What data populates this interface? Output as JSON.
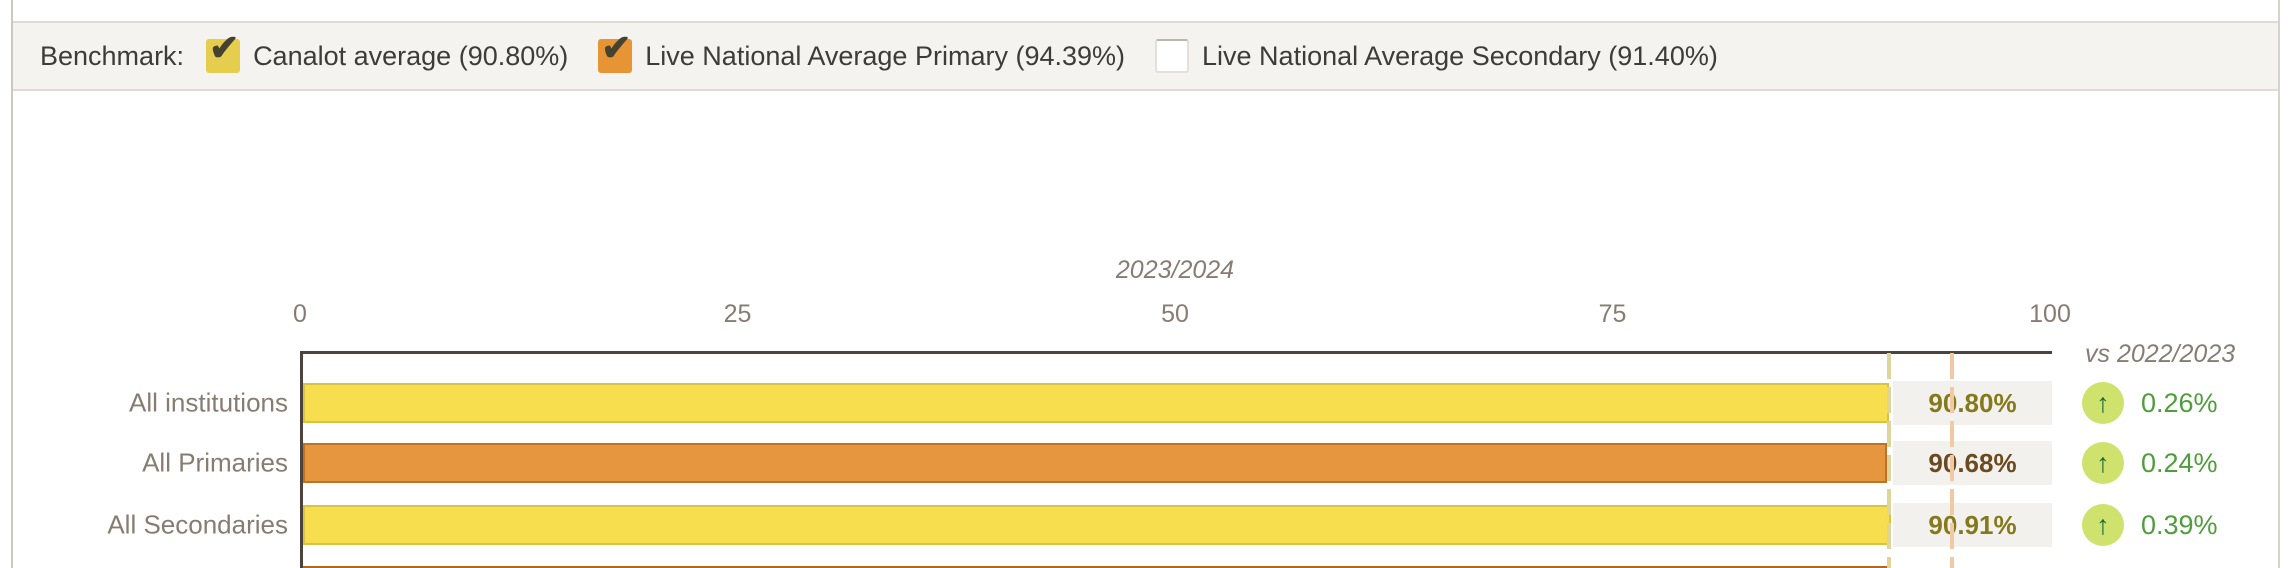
{
  "legend": {
    "label": "Benchmark:",
    "items": [
      {
        "label": "Canalot average (90.80%)",
        "checked": true,
        "color": "#e5ce4e"
      },
      {
        "label": "Live National Average Primary (94.39%)",
        "checked": true,
        "color": "#e69434"
      },
      {
        "label": "Live National Average Secondary (91.40%)",
        "checked": false,
        "color": "#ffffff"
      }
    ],
    "check_glyph": "✔"
  },
  "chart_data": {
    "type": "bar",
    "orientation": "horizontal",
    "title": "2023/2024",
    "comparison_label": "vs 2022/2023",
    "xlim": [
      0,
      100
    ],
    "x_ticks": [
      "0",
      "25",
      "50",
      "75",
      "100"
    ],
    "x_tick_values": [
      0,
      25,
      50,
      75,
      100
    ],
    "grid": false,
    "categories": [
      "All institutions",
      "All Primaries",
      "All Secondaries"
    ],
    "rows": [
      {
        "label": "All institutions",
        "value": 90.8,
        "value_label": "90.80%",
        "fill": "#f6de4e",
        "border": "#d9c342",
        "value_color": "#857a1b",
        "delta": "0.26%",
        "delta_direction": "up"
      },
      {
        "label": "All Primaries",
        "value": 90.68,
        "value_label": "90.68%",
        "fill": "#e79640",
        "border": "#bf7222",
        "value_color": "#6b4a20",
        "delta": "0.24%",
        "delta_direction": "up"
      },
      {
        "label": "All Secondaries",
        "value": 90.91,
        "value_label": "90.91%",
        "fill": "#f6de4e",
        "border": "#d9c342",
        "value_color": "#857a1b",
        "delta": "0.39%",
        "delta_direction": "up"
      }
    ],
    "benchmark_lines": [
      {
        "name": "Canalot average",
        "value": 90.8,
        "color": "#ddd59b"
      },
      {
        "name": "Live National Average Primary",
        "value": 94.39,
        "color": "#f2c9a2"
      }
    ],
    "partial_next_row": {
      "value": 90.8,
      "color": "#b5671c"
    },
    "up_arrow_glyph": "↑"
  }
}
